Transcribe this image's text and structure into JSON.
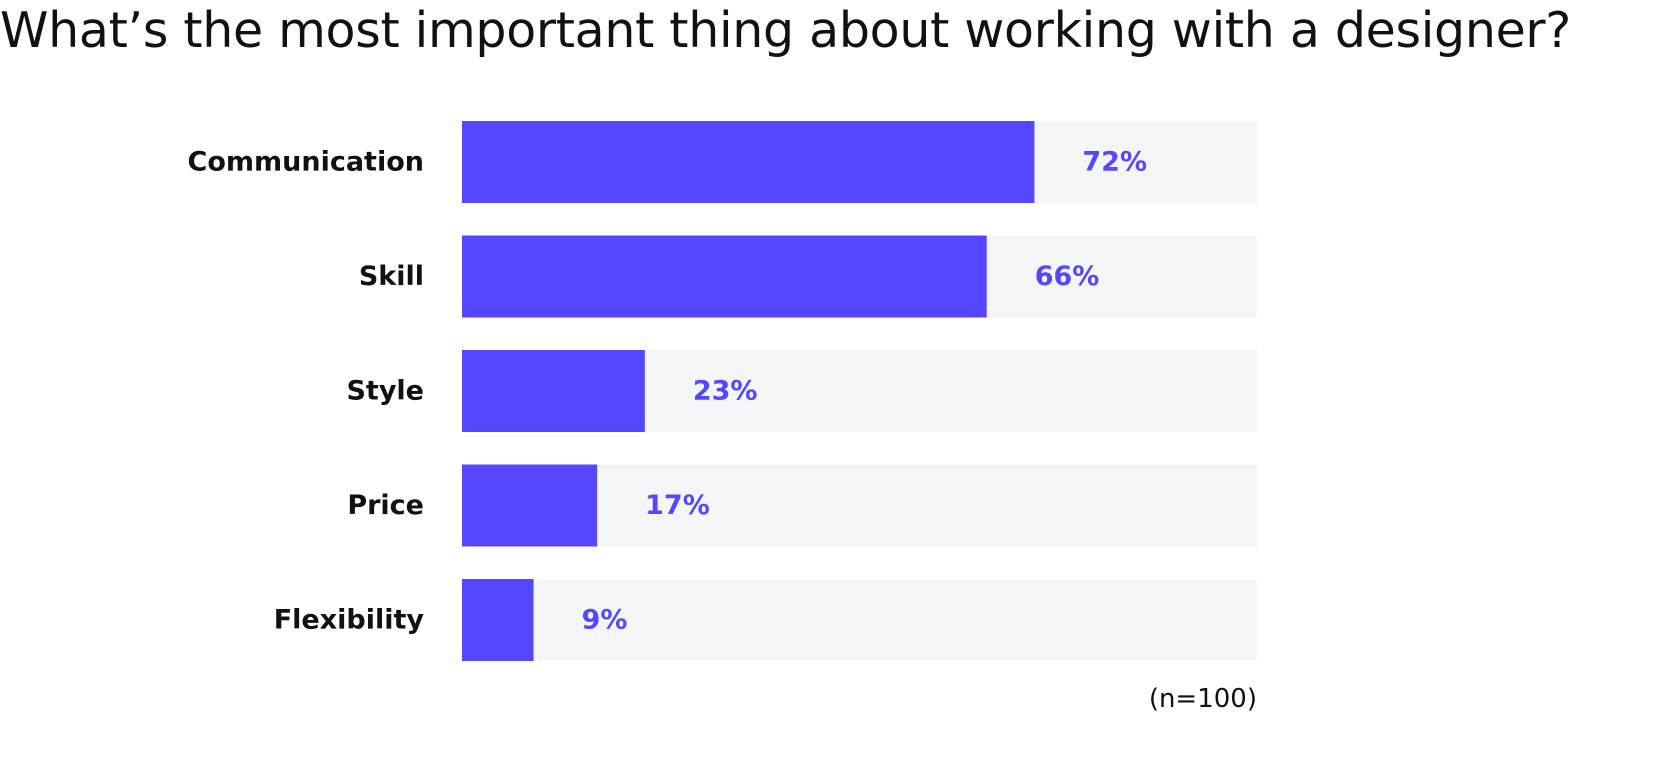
{
  "chart_data": {
    "type": "bar",
    "orientation": "horizontal",
    "title": "What’s the most important thing about working with a designer?",
    "categories": [
      "Communication",
      "Skill",
      "Style",
      "Price",
      "Flexibility"
    ],
    "values": [
      72,
      66,
      23,
      17,
      9
    ],
    "value_labels": [
      "72%",
      "66%",
      "23%",
      "17%",
      "9%"
    ],
    "unit": "%",
    "xlim": [
      0,
      100
    ],
    "xlabel": "",
    "ylabel": "",
    "grid": false,
    "legend": "none",
    "note": "(n=100)",
    "colors": {
      "bar": "#5546FF",
      "track": "#F4F5F7",
      "value_text": "#5546FF",
      "text": "#111111"
    }
  }
}
